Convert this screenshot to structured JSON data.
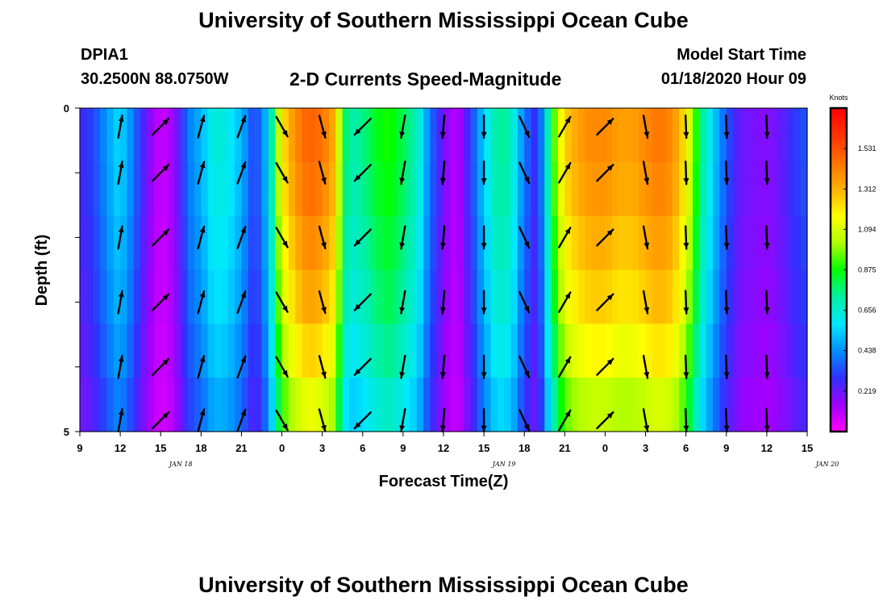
{
  "header": {
    "title": "University of Southern Mississippi Ocean Cube",
    "station_id": "DPIA1",
    "station_coords": "30.2500N 88.0750W",
    "chart_heading": "2-D Currents Speed-Magnitude",
    "model_label": "Model Start Time",
    "model_time": "01/18/2020 Hour 09"
  },
  "footer": {
    "title": "University of Southern Mississippi Ocean Cube"
  },
  "chart_data": {
    "type": "heatmap",
    "title": "2-D Currents Speed-Magnitude",
    "xlabel": "Forecast Time(Z)",
    "ylabel": "Depth (ft)",
    "x_ticks": [
      "9",
      "12",
      "15",
      "18",
      "21",
      "0",
      "3",
      "6",
      "9",
      "12",
      "15",
      "18",
      "21",
      "0",
      "3",
      "6",
      "9",
      "12",
      "15"
    ],
    "date_labels": [
      {
        "label": "JAN 18",
        "hour_index": 2.5
      },
      {
        "label": "JAN 19",
        "hour_index": 10.5
      },
      {
        "label": "JAN 20",
        "hour_index": 18.5
      }
    ],
    "y_ticks": [
      "0",
      "5"
    ],
    "y_range_ft": [
      0,
      5
    ],
    "hours_range": [
      0,
      54
    ],
    "colorbar": {
      "unit": "Knots",
      "labels": [
        "1.531",
        "1.312",
        "1.094",
        "0.875",
        "0.656",
        "0.438",
        "0.219"
      ],
      "range_knots": [
        0,
        1.75
      ]
    },
    "colormap": [
      "#ff00ff",
      "#a000ff",
      "#3030ff",
      "#0090ff",
      "#00e8ff",
      "#00f0a0",
      "#00ff00",
      "#b0ff00",
      "#ffff00",
      "#ffb000",
      "#ff7000",
      "#ff3000",
      "#ff0000"
    ],
    "speed_profile": [
      {
        "h": 0,
        "s": 0.27
      },
      {
        "h": 1,
        "s": 0.32
      },
      {
        "h": 2,
        "s": 0.45
      },
      {
        "h": 2.7,
        "s": 0.55
      },
      {
        "h": 3.3,
        "s": 0.52
      },
      {
        "h": 4,
        "s": 0.4
      },
      {
        "h": 5,
        "s": 0.2
      },
      {
        "h": 6,
        "s": 0.08
      },
      {
        "h": 7,
        "s": 0.15
      },
      {
        "h": 8,
        "s": 0.4
      },
      {
        "h": 9,
        "s": 0.5
      },
      {
        "h": 10,
        "s": 0.65
      },
      {
        "h": 11,
        "s": 0.62
      },
      {
        "h": 12,
        "s": 0.5
      },
      {
        "h": 13,
        "s": 0.3
      },
      {
        "h": 14,
        "s": 0.55
      },
      {
        "h": 14.5,
        "s": 0.9
      },
      {
        "h": 15,
        "s": 1.2
      },
      {
        "h": 16,
        "s": 1.4
      },
      {
        "h": 17,
        "s": 1.5
      },
      {
        "h": 18,
        "s": 1.45
      },
      {
        "h": 19,
        "s": 1.3
      },
      {
        "h": 19.5,
        "s": 0.85
      },
      {
        "h": 20,
        "s": 0.7
      },
      {
        "h": 21,
        "s": 0.75
      },
      {
        "h": 22,
        "s": 0.85
      },
      {
        "h": 23,
        "s": 0.9
      },
      {
        "h": 24,
        "s": 0.8
      },
      {
        "h": 25,
        "s": 0.7
      },
      {
        "h": 26,
        "s": 0.4
      },
      {
        "h": 27,
        "s": 0.2
      },
      {
        "h": 28,
        "s": 0.1
      },
      {
        "h": 29,
        "s": 0.3
      },
      {
        "h": 30,
        "s": 0.55
      },
      {
        "h": 31,
        "s": 0.75
      },
      {
        "h": 32,
        "s": 0.7
      },
      {
        "h": 33,
        "s": 0.4
      },
      {
        "h": 34,
        "s": 0.25
      },
      {
        "h": 35,
        "s": 0.85
      },
      {
        "h": 36,
        "s": 1.25
      },
      {
        "h": 37,
        "s": 1.35
      },
      {
        "h": 38,
        "s": 1.4
      },
      {
        "h": 39,
        "s": 1.4
      },
      {
        "h": 40,
        "s": 1.35
      },
      {
        "h": 41,
        "s": 1.35
      },
      {
        "h": 42,
        "s": 1.4
      },
      {
        "h": 43,
        "s": 1.45
      },
      {
        "h": 44,
        "s": 1.4
      },
      {
        "h": 45,
        "s": 1.2
      },
      {
        "h": 46,
        "s": 0.8
      },
      {
        "h": 47,
        "s": 0.55
      },
      {
        "h": 48,
        "s": 0.35
      },
      {
        "h": 49,
        "s": 0.22
      },
      {
        "h": 50,
        "s": 0.2
      },
      {
        "h": 51,
        "s": 0.18
      },
      {
        "h": 52,
        "s": 0.22
      },
      {
        "h": 53,
        "s": 0.3
      },
      {
        "h": 54,
        "s": 0.35
      }
    ],
    "depth_factors": [
      1.0,
      0.98,
      0.94,
      0.9,
      0.84,
      0.76
    ],
    "vector_hours": [
      3,
      6,
      9,
      12,
      15,
      18,
      21,
      24,
      27,
      30,
      33,
      36,
      39,
      42,
      45,
      48,
      51
    ],
    "vector_directions_deg": [
      10,
      45,
      15,
      20,
      150,
      165,
      225,
      190,
      185,
      180,
      155,
      30,
      45,
      170,
      178,
      178,
      178
    ],
    "vector_depths_ft": [
      0.25,
      1.0,
      2.0,
      3.0,
      4.0,
      5.0
    ]
  }
}
